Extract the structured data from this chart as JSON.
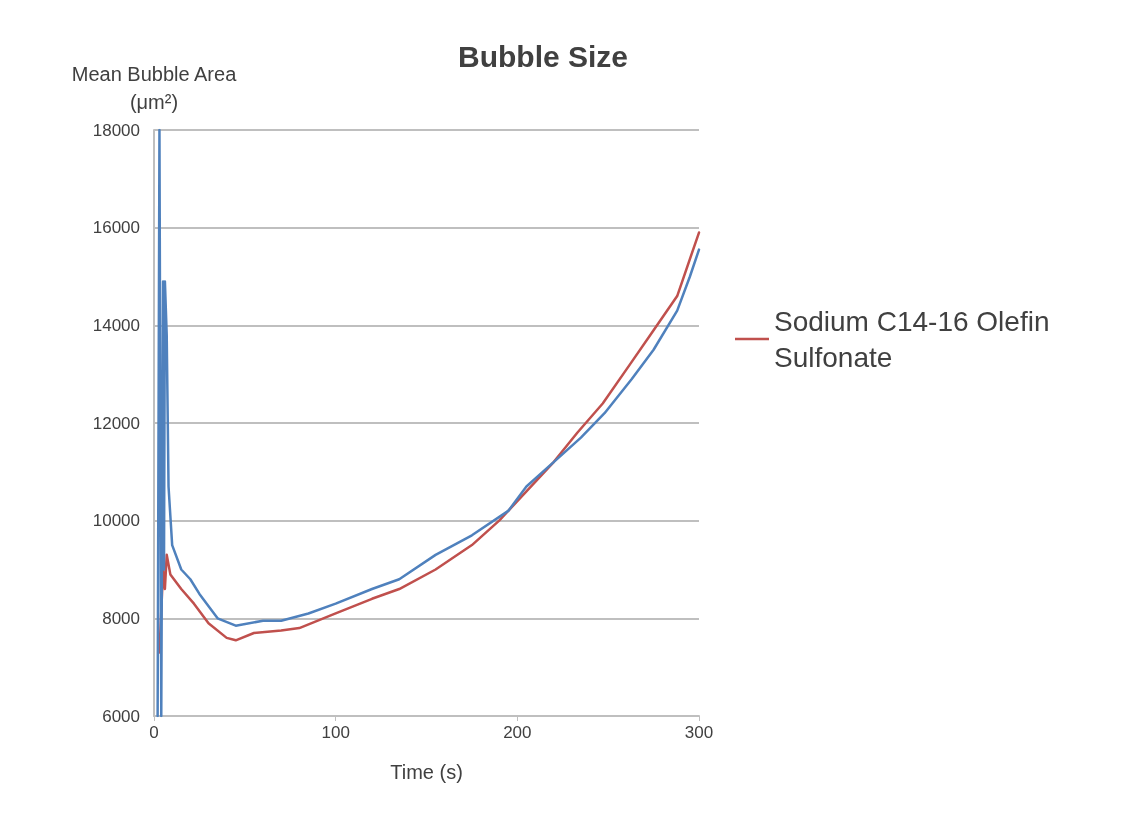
{
  "chart_data": {
    "type": "line",
    "title": "Bubble Size",
    "ylabel": "Mean Bubble Area (μm²)",
    "xlabel": "Time (s)",
    "xlim": [
      0,
      300
    ],
    "xticks": [
      0,
      100,
      200,
      300
    ],
    "ylim": [
      6000,
      18000
    ],
    "yticks": [
      6000,
      8000,
      10000,
      12000,
      14000,
      16000,
      18000
    ],
    "grid": "y",
    "legend": "right",
    "marker": "none",
    "line_style": "solid",
    "series": [
      {
        "name": "Sodium C14-16 Olefin Sulfonate",
        "color": "#c0504d",
        "x": [
          3,
          5,
          6,
          7,
          9,
          15,
          22,
          30,
          40,
          45,
          55,
          70,
          80,
          100,
          120,
          135,
          155,
          175,
          190,
          205,
          220,
          233,
          247,
          262,
          275,
          288,
          300
        ],
        "values": [
          7300,
          9000,
          8600,
          9300,
          8900,
          8600,
          8300,
          7900,
          7600,
          7550,
          7700,
          7750,
          7800,
          8100,
          8400,
          8600,
          9000,
          9500,
          10000,
          10600,
          11200,
          11800,
          12400,
          13200,
          13900,
          14600,
          15900
        ]
      },
      {
        "color": "#4f81bd",
        "x": [
          2,
          3,
          4,
          5,
          5.5,
          6,
          7,
          8,
          10,
          15,
          20,
          25,
          35,
          45,
          60,
          70,
          85,
          100,
          120,
          135,
          155,
          175,
          195,
          205,
          220,
          235,
          248,
          263,
          275,
          288,
          295,
          300
        ],
        "values": [
          6000,
          18000,
          6000,
          14900,
          9000,
          14900,
          13800,
          10700,
          9500,
          9000,
          8800,
          8500,
          8000,
          7850,
          7950,
          7950,
          8100,
          8300,
          8600,
          8800,
          9300,
          9700,
          10200,
          10700,
          11200,
          11700,
          12200,
          12900,
          13500,
          14300,
          15000,
          15550
        ]
      }
    ]
  }
}
